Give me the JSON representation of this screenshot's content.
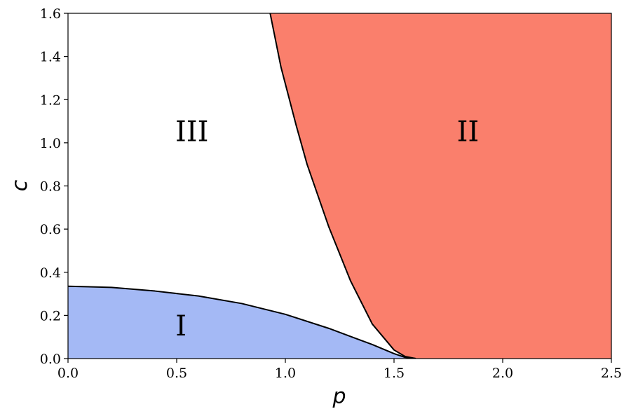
{
  "chart_data": {
    "type": "area",
    "xlabel": "p",
    "ylabel": "c",
    "xlim": [
      0.0,
      2.5
    ],
    "ylim": [
      0.0,
      1.6
    ],
    "xticks": [
      "0.0",
      "0.5",
      "1.0",
      "1.5",
      "2.0",
      "2.5"
    ],
    "yticks": [
      "0.0",
      "0.2",
      "0.4",
      "0.6",
      "0.8",
      "1.0",
      "1.2",
      "1.4",
      "1.6"
    ],
    "grid": false,
    "regions": [
      {
        "label": "I",
        "color": "#a4b9f5",
        "label_pos": [
          0.52,
          0.14
        ],
        "boundary": [
          [
            0.0,
            0.335
          ],
          [
            0.2,
            0.33
          ],
          [
            0.4,
            0.313
          ],
          [
            0.6,
            0.29
          ],
          [
            0.8,
            0.255
          ],
          [
            1.0,
            0.205
          ],
          [
            1.2,
            0.14
          ],
          [
            1.4,
            0.065
          ],
          [
            1.5,
            0.023
          ],
          [
            1.55,
            0.006
          ],
          [
            1.6,
            0.0
          ]
        ]
      },
      {
        "label": "II",
        "color": "#fa7f6c",
        "label_pos": [
          1.84,
          1.04
        ],
        "boundary": [
          [
            0.93,
            1.6
          ],
          [
            0.98,
            1.35
          ],
          [
            1.05,
            1.08
          ],
          [
            1.1,
            0.9
          ],
          [
            1.2,
            0.61
          ],
          [
            1.3,
            0.36
          ],
          [
            1.4,
            0.16
          ],
          [
            1.5,
            0.04
          ],
          [
            1.55,
            0.01
          ],
          [
            1.6,
            0.0
          ]
        ]
      },
      {
        "label": "III",
        "color": "#ffffff",
        "label_pos": [
          0.57,
          1.04
        ]
      }
    ]
  }
}
